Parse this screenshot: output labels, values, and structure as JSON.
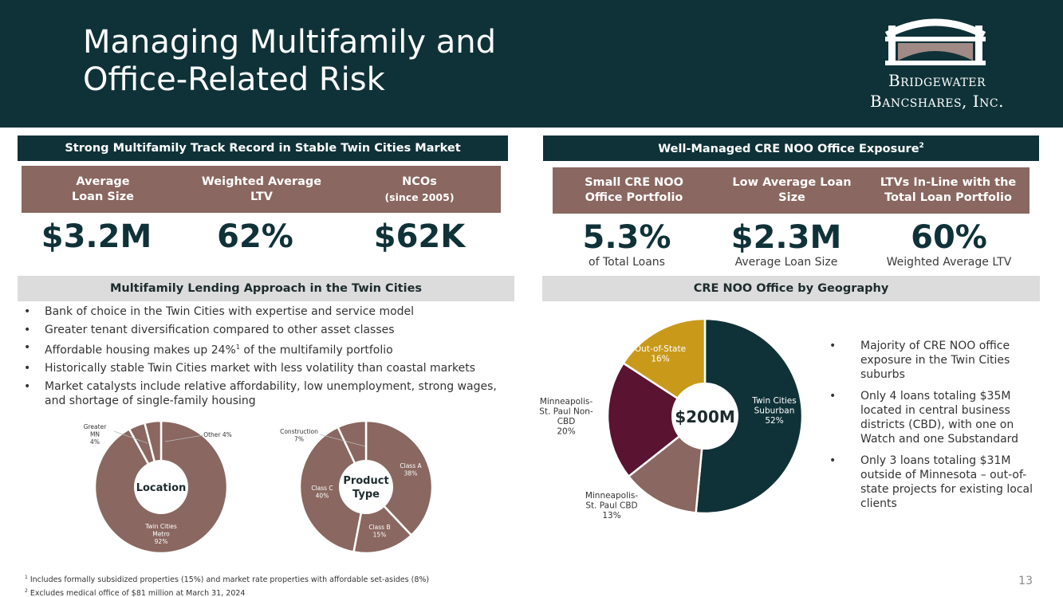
{
  "header": {
    "title_line1": "Managing Multifamily and",
    "title_line2": "Office-Related Risk",
    "logo_line1": "Bridgewater",
    "logo_line2": "Bancshares, Inc."
  },
  "left": {
    "section_title": "Strong Multifamily Track Record in Stable Twin Cities Market",
    "tiles": [
      {
        "label1": "Average",
        "label2": "Loan Size",
        "value": "$3.2M"
      },
      {
        "label1": "Weighted Average",
        "label2": "LTV",
        "value": "62%"
      },
      {
        "label1": "NCOs",
        "label2": "(since 2005)",
        "value": "$62K"
      }
    ],
    "approach_title": "Multifamily Lending Approach in the Twin Cities",
    "bullets": [
      "Bank of choice in the Twin Cities with expertise and service model",
      "Greater tenant diversification compared to other asset classes",
      "Affordable housing makes up 24%",
      "of the multifamily portfolio",
      "Historically stable Twin Cities market with less volatility than coastal markets",
      "Market catalysts include relative affordability, low unemployment, strong wages, and shortage of single-family housing"
    ],
    "bullet3_sup": "1"
  },
  "right": {
    "section_title": "Well-Managed CRE NOO Office Exposure",
    "section_sup": "2",
    "tiles": [
      {
        "label1": "Small CRE NOO",
        "label2": "Office Portfolio",
        "value": "5.3%",
        "sub": "of Total Loans"
      },
      {
        "label1": "Low Average Loan",
        "label2": "Size",
        "value": "$2.3M",
        "sub": "Average Loan Size"
      },
      {
        "label1": "LTVs In-Line with the",
        "label2": "Total Loan Portfolio",
        "value": "60%",
        "sub": "Weighted Average LTV"
      }
    ],
    "geo_title": "CRE NOO Office by Geography",
    "bullets": [
      "Majority of CRE NOO office exposure in the Twin Cities suburbs",
      "Only 4 loans totaling $35M located in central business districts (CBD), with one on Watch and one Substandard",
      "Only 3 loans totaling $31M outside of Minnesota – out-of-state projects for existing local clients"
    ]
  },
  "chart_data": [
    {
      "type": "pie",
      "title": "Location",
      "categories": [
        "Twin Cities Metro",
        "Greater MN",
        "Other"
      ],
      "values": [
        92,
        4,
        4
      ],
      "colors": [
        "#8a6760",
        "#8a6760",
        "#8a6760"
      ],
      "labels": [
        {
          "lines": [
            "Twin Cities",
            "Metro",
            "92%"
          ]
        },
        {
          "lines": [
            "Greater",
            "MN",
            "4%"
          ]
        },
        {
          "lines": [
            "Other 4%"
          ]
        }
      ]
    },
    {
      "type": "pie",
      "title": "Product Type",
      "categories": [
        "Class A",
        "Class B",
        "Class C",
        "Construction"
      ],
      "values": [
        38,
        15,
        40,
        7
      ],
      "colors": [
        "#8a6760",
        "#8a6760",
        "#8a6760",
        "#8a6760"
      ],
      "labels": [
        {
          "lines": [
            "Class A",
            "38%"
          ]
        },
        {
          "lines": [
            "Class B",
            "15%"
          ]
        },
        {
          "lines": [
            "Class C",
            "40%"
          ]
        },
        {
          "lines": [
            "Construction",
            "7%"
          ]
        }
      ]
    },
    {
      "type": "pie",
      "title": "$200M",
      "categories": [
        "Twin Cities Suburban",
        "Minneapolis-St. Paul CBD",
        "Minneapolis-St. Paul Non-CBD",
        "Out-of-State"
      ],
      "values": [
        52,
        13,
        20,
        16
      ],
      "colors": [
        "#0f3238",
        "#8a6760",
        "#5a1330",
        "#c99a1a"
      ],
      "labels": [
        {
          "lines": [
            "Twin Cities",
            "Suburban",
            "52%"
          ]
        },
        {
          "lines": [
            "Minneapolis-",
            "St. Paul CBD",
            "13%"
          ]
        },
        {
          "lines": [
            "Minneapolis-",
            "St. Paul Non-",
            "CBD",
            "20%"
          ]
        },
        {
          "lines": [
            "Out-of-State",
            "16%"
          ]
        }
      ]
    }
  ],
  "footnotes": {
    "f1_sup": "1",
    "f1": "Includes formally subsidized properties (15%) and market rate properties with affordable set-asides (8%)",
    "f2_sup": "2",
    "f2": "Excludes medical office of $81 million at March 31, 2024"
  },
  "page_number": "13"
}
